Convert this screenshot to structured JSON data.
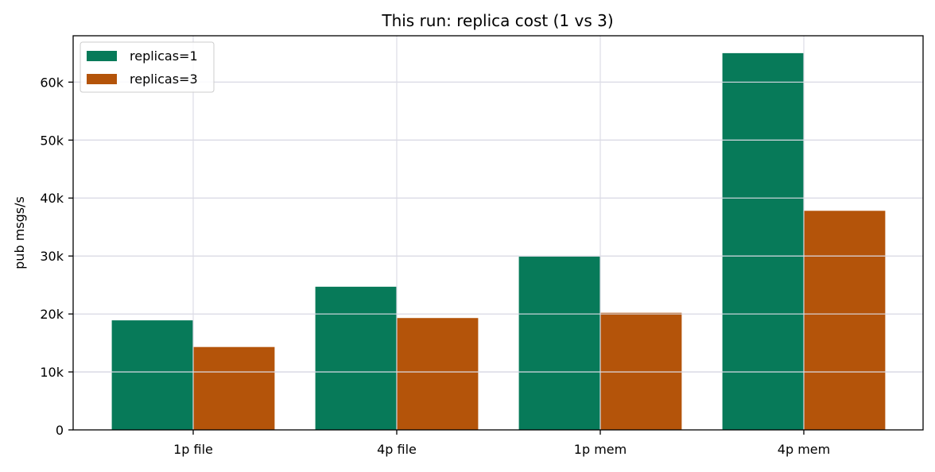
{
  "chart_data": {
    "type": "bar",
    "title": "This run: replica cost (1 vs 3)",
    "xlabel": "",
    "ylabel": "pub msgs/s",
    "categories": [
      "1p file",
      "4p file",
      "1p mem",
      "4p mem"
    ],
    "series": [
      {
        "name": "replicas=1",
        "color": "#077a59",
        "values": [
          18900,
          24700,
          29900,
          65000
        ]
      },
      {
        "name": "replicas=3",
        "color": "#b4540a",
        "values": [
          14300,
          19300,
          20200,
          37800
        ]
      }
    ],
    "ylim": [
      0,
      68000
    ],
    "yticks": [
      0,
      10000,
      20000,
      30000,
      40000,
      50000,
      60000
    ],
    "ytick_labels": [
      "0",
      "10k",
      "20k",
      "30k",
      "40k",
      "50k",
      "60k"
    ],
    "grid": true,
    "grid_color": "#dcdce6",
    "legend_position": "top-left"
  }
}
